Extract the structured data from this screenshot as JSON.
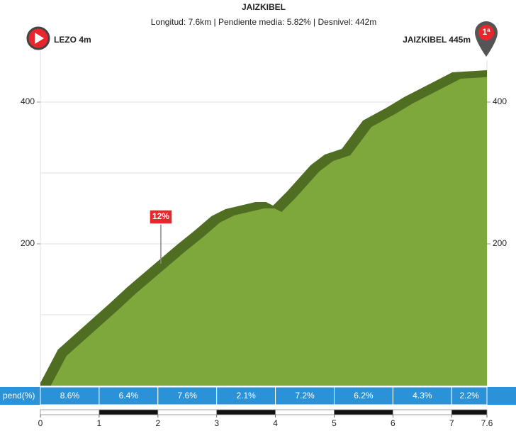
{
  "chart_data": {
    "type": "profile",
    "title": "JAIZKIBEL",
    "subtitle": "Longitud: 7.6km | Pendiente media: 5.82% | Desnivel: 442m",
    "start_label": "LEZO 4m",
    "end_label": "JAIZKIBEL 445m",
    "end_category": "1ª",
    "x": [
      0,
      0.3,
      1.18,
      1.48,
      2.33,
      2.63,
      2.91,
      3.15,
      3.66,
      3.84,
      3.96,
      4.2,
      4.6,
      4.84,
      5.13,
      5.49,
      5.89,
      6.19,
      7.01,
      7.6
    ],
    "values": [
      4,
      51,
      116,
      139,
      199,
      219,
      239,
      249,
      259,
      259,
      254,
      274,
      311,
      326,
      334,
      374,
      392,
      407,
      442,
      445
    ],
    "color": "#7ea83c",
    "edge_color": "#4f6e22",
    "xlim": [
      0,
      7.6
    ],
    "xticks": [
      0,
      1,
      2,
      3,
      4,
      5,
      6,
      7,
      7.6
    ],
    "ylim": [
      0,
      500
    ],
    "yticks": [
      200,
      400
    ],
    "minor_grid": [
      100,
      300
    ],
    "grid": true,
    "annotation": {
      "text": "12%",
      "x": 2.05,
      "y": 172
    },
    "gradients": {
      "label": "pend(%)",
      "values": [
        8.6,
        6.4,
        7.6,
        2.1,
        7.2,
        6.2,
        4.3,
        2.2
      ],
      "value_labels": [
        "8.6%",
        "6.4%",
        "7.6%",
        "2.1%",
        "7.2%",
        "6.2%",
        "4.3%",
        "2.2%"
      ],
      "color": "#2b92d8"
    }
  }
}
